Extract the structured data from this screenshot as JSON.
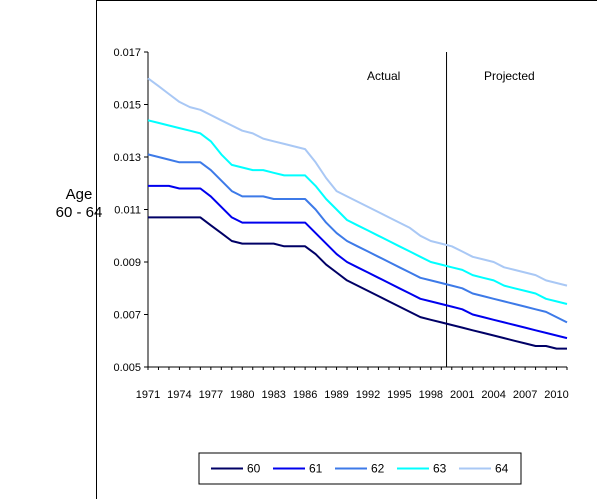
{
  "side_label": {
    "line1": "Age",
    "line2": "60 - 64"
  },
  "chart_data": {
    "type": "line",
    "title": "",
    "xlabel": "",
    "ylabel": "",
    "x": [
      1971,
      1972,
      1973,
      1974,
      1975,
      1976,
      1977,
      1978,
      1979,
      1980,
      1981,
      1982,
      1983,
      1984,
      1985,
      1986,
      1987,
      1988,
      1989,
      1990,
      1991,
      1992,
      1993,
      1994,
      1995,
      1996,
      1997,
      1998,
      1999,
      2000,
      2001,
      2002,
      2003,
      2004,
      2005,
      2006,
      2007,
      2008,
      2009,
      2010,
      2011
    ],
    "x_tick_labels": [
      "1971",
      "1974",
      "1977",
      "1980",
      "1983",
      "1986",
      "1989",
      "1992",
      "1995",
      "1998",
      "2001",
      "2004",
      "2007",
      "2010"
    ],
    "x_ticks": [
      1971,
      1974,
      1977,
      1980,
      1983,
      1986,
      1989,
      1992,
      1995,
      1998,
      2001,
      2004,
      2007,
      2010
    ],
    "ylim": [
      0.005,
      0.017
    ],
    "y_ticks": [
      "0.005",
      "0.007",
      "0.009",
      "0.011",
      "0.013",
      "0.015",
      "0.017"
    ],
    "divider_x": 1999.5,
    "annotations": [
      {
        "text": "Actual",
        "x": 1993.5
      },
      {
        "text": "Projected",
        "x": 2005.5
      }
    ],
    "legend_position": "bottom",
    "grid": false,
    "series": [
      {
        "name": "60",
        "color": "#000066",
        "values": [
          0.0107,
          0.0107,
          0.0107,
          0.0107,
          0.0107,
          0.0107,
          0.0104,
          0.0101,
          0.0098,
          0.0097,
          0.0097,
          0.0097,
          0.0097,
          0.0096,
          0.0096,
          0.0096,
          0.0093,
          0.0089,
          0.0086,
          0.0083,
          0.0081,
          0.0079,
          0.0077,
          0.0075,
          0.0073,
          0.0071,
          0.0069,
          0.0068,
          0.0067,
          0.0066,
          0.0065,
          0.0064,
          0.0063,
          0.0062,
          0.0061,
          0.006,
          0.0059,
          0.0058,
          0.0058,
          0.0057,
          0.0057
        ]
      },
      {
        "name": "61",
        "color": "#0000ee",
        "values": [
          0.0119,
          0.0119,
          0.0119,
          0.0118,
          0.0118,
          0.0118,
          0.0115,
          0.0111,
          0.0107,
          0.0105,
          0.0105,
          0.0105,
          0.0105,
          0.0105,
          0.0105,
          0.0105,
          0.0101,
          0.0097,
          0.0093,
          0.009,
          0.0088,
          0.0086,
          0.0084,
          0.0082,
          0.008,
          0.0078,
          0.0076,
          0.0075,
          0.0074,
          0.0073,
          0.0072,
          0.007,
          0.0069,
          0.0068,
          0.0067,
          0.0066,
          0.0065,
          0.0064,
          0.0063,
          0.0062,
          0.0061
        ]
      },
      {
        "name": "62",
        "color": "#3d7ae8",
        "values": [
          0.0131,
          0.013,
          0.0129,
          0.0128,
          0.0128,
          0.0128,
          0.0125,
          0.0121,
          0.0117,
          0.0115,
          0.0115,
          0.0115,
          0.0114,
          0.0114,
          0.0114,
          0.0114,
          0.011,
          0.0105,
          0.0101,
          0.0098,
          0.0096,
          0.0094,
          0.0092,
          0.009,
          0.0088,
          0.0086,
          0.0084,
          0.0083,
          0.0082,
          0.0081,
          0.008,
          0.0078,
          0.0077,
          0.0076,
          0.0075,
          0.0074,
          0.0073,
          0.0072,
          0.0071,
          0.0069,
          0.0067
        ]
      },
      {
        "name": "63",
        "color": "#00ffff",
        "values": [
          0.0144,
          0.0143,
          0.0142,
          0.0141,
          0.014,
          0.0139,
          0.0136,
          0.0131,
          0.0127,
          0.0126,
          0.0125,
          0.0125,
          0.0124,
          0.0123,
          0.0123,
          0.0123,
          0.0119,
          0.0114,
          0.011,
          0.0106,
          0.0104,
          0.0102,
          0.01,
          0.0098,
          0.0096,
          0.0094,
          0.0092,
          0.009,
          0.0089,
          0.0088,
          0.0087,
          0.0085,
          0.0084,
          0.0083,
          0.0081,
          0.008,
          0.0079,
          0.0078,
          0.0076,
          0.0075,
          0.0074
        ]
      },
      {
        "name": "64",
        "color": "#a9c8f5",
        "values": [
          0.016,
          0.0157,
          0.0154,
          0.0151,
          0.0149,
          0.0148,
          0.0146,
          0.0144,
          0.0142,
          0.014,
          0.0139,
          0.0137,
          0.0136,
          0.0135,
          0.0134,
          0.0133,
          0.0128,
          0.0122,
          0.0117,
          0.0115,
          0.0113,
          0.0111,
          0.0109,
          0.0107,
          0.0105,
          0.0103,
          0.01,
          0.0098,
          0.0097,
          0.0096,
          0.0094,
          0.0092,
          0.0091,
          0.009,
          0.0088,
          0.0087,
          0.0086,
          0.0085,
          0.0083,
          0.0082,
          0.0081
        ]
      }
    ]
  }
}
